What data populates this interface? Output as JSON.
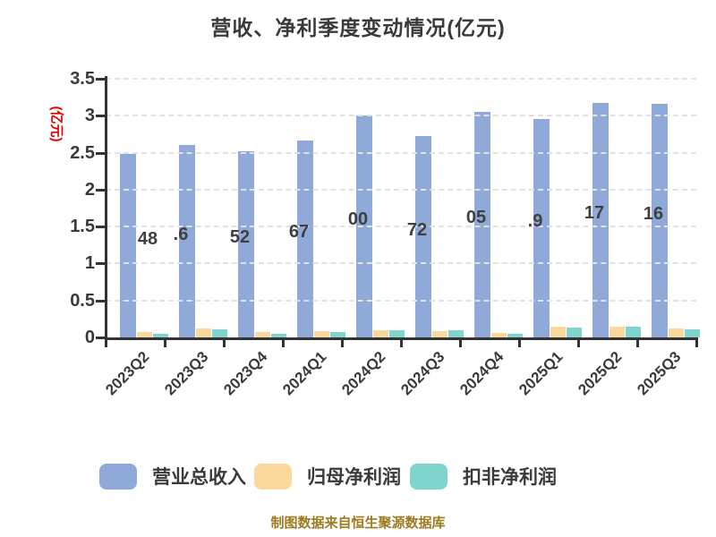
{
  "title": "营收、净利季度变动情况(亿元)",
  "y_axis_label": "(亿元)",
  "footer": "制图数据来自恒生聚源数据库",
  "colors": {
    "revenue_bar": "#8fa9d8",
    "net_profit_bar": "#fbd89b",
    "non_gaap_net_profit_bar": "#7fd4cd",
    "axis": "#333333",
    "tick_text": "#3a3a3a",
    "title_text": "#3a3a3a",
    "y_axis_label_text": "#e60000",
    "footer_text": "#9e7b1e",
    "gridline": "#e2e2e2",
    "background": "#ffffff"
  },
  "chart_data": {
    "type": "bar",
    "title": "营收、净利季度变动情况(亿元)",
    "ylabel": "(亿元)",
    "categories": [
      "2023Q2",
      "2023Q3",
      "2023Q4",
      "2024Q1",
      "2024Q2",
      "2024Q3",
      "2024Q4",
      "2025Q1",
      "2025Q2",
      "2025Q3"
    ],
    "series": [
      {
        "key": "revenue",
        "name": "营业总收入",
        "color": "#8fa9d8",
        "values": [
          2.48,
          2.6,
          2.52,
          2.67,
          3.0,
          2.72,
          3.05,
          2.95,
          3.17,
          3.16
        ],
        "visible_value_fragments": [
          "48",
          ".6",
          "52",
          "67",
          "00",
          "72",
          "05",
          ".9",
          "17",
          "16"
        ]
      },
      {
        "key": "net-profit",
        "name": "归母净利润",
        "color": "#fbd89b",
        "values": [
          0.07,
          0.12,
          0.07,
          0.08,
          0.1,
          0.09,
          0.06,
          0.14,
          0.15,
          0.12
        ]
      },
      {
        "key": "non-gaap-net-profit",
        "name": "扣非净利润",
        "color": "#7fd4cd",
        "values": [
          0.05,
          0.11,
          0.05,
          0.07,
          0.1,
          0.1,
          0.05,
          0.13,
          0.14,
          0.11
        ]
      }
    ],
    "ylim": [
      0,
      3.5
    ],
    "yticks": [
      0,
      0.5,
      1,
      1.5,
      2,
      2.5,
      3,
      3.5
    ],
    "grid": "dashed-horizontal",
    "legend_position": "bottom",
    "x_tick_label_rotation": -45
  }
}
